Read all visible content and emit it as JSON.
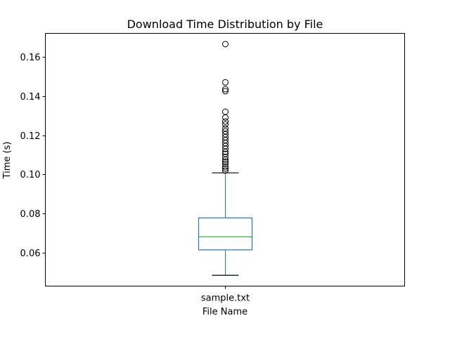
{
  "chart_data": {
    "type": "box",
    "title": "Download Time Distribution by File",
    "xlabel": "File Name",
    "ylabel": "Time (s)",
    "ylim": [
      0.043,
      0.172
    ],
    "yticks": [
      0.06,
      0.08,
      0.1,
      0.12,
      0.14,
      0.16
    ],
    "ytick_labels": [
      "0.06",
      "0.08",
      "0.10",
      "0.12",
      "0.14",
      "0.16"
    ],
    "categories": [
      "sample.txt"
    ],
    "boxes": [
      {
        "name": "sample.txt",
        "whisker_low": 0.0485,
        "q1": 0.0615,
        "median": 0.0682,
        "q3": 0.0778,
        "whisker_high": 0.1008,
        "outliers": [
          0.102,
          0.103,
          0.104,
          0.1055,
          0.1065,
          0.1075,
          0.109,
          0.1105,
          0.1115,
          0.113,
          0.1145,
          0.116,
          0.1175,
          0.119,
          0.1205,
          0.122,
          0.1235,
          0.1255,
          0.127,
          0.129,
          0.132,
          0.1425,
          0.1435,
          0.147,
          0.1665
        ]
      }
    ],
    "colors": {
      "box": "#1f77b4",
      "median": "#2ca02c",
      "whisker": "#000000",
      "outlier": "#000000"
    },
    "grid": false,
    "legend": "none"
  }
}
